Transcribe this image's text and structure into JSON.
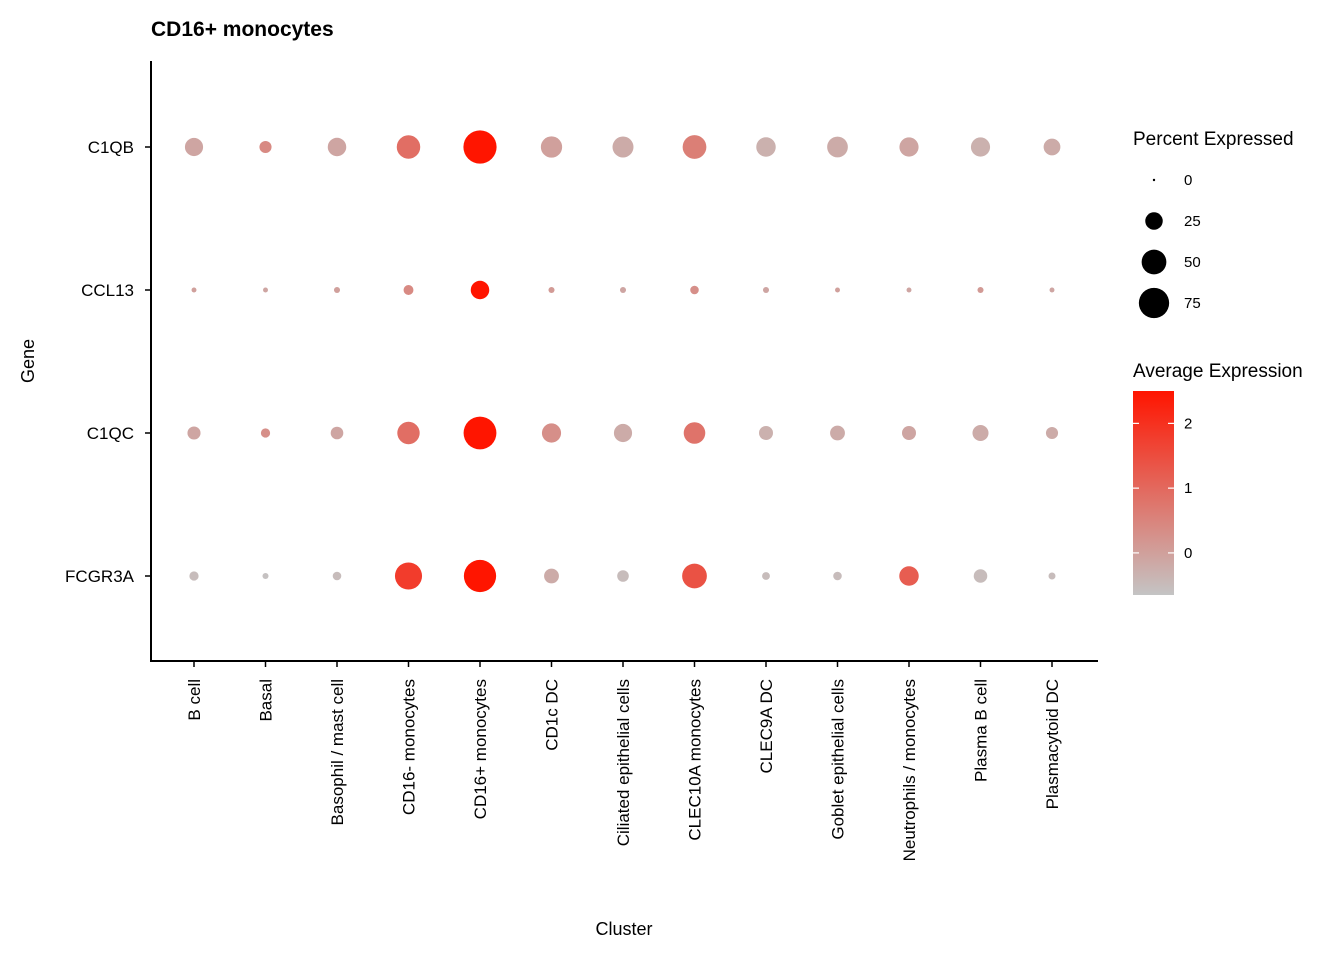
{
  "chart_data": {
    "type": "scatter",
    "subtype": "dot-plot",
    "title": "CD16+ monocytes",
    "xlabel": "Cluster",
    "ylabel": "Gene",
    "genes": [
      "C1QB",
      "CCL13",
      "C1QC",
      "FCGR3A"
    ],
    "clusters": [
      "B cell",
      "Basal",
      "Basophil / mast cell",
      "CD16- monocytes",
      "CD16+ monocytes",
      "CD1c DC",
      "Ciliated epithelial cells",
      "CLEC10A monocytes",
      "CLEC9A DC",
      "Goblet epithelial cells",
      "Neutrophils / monocytes",
      "Plasma B cell",
      "Plasmacytoid DC"
    ],
    "series": [
      {
        "gene": "C1QB",
        "pct_expressed": [
          27,
          12,
          28,
          45,
          90,
          37,
          36,
          46,
          31,
          35,
          30,
          30,
          23
        ],
        "avg_expression": [
          -0.1,
          0.4,
          -0.1,
          0.9,
          2.5,
          0.0,
          -0.2,
          0.6,
          -0.3,
          -0.2,
          -0.1,
          -0.3,
          -0.2
        ]
      },
      {
        "gene": "CCL13",
        "pct_expressed": [
          2,
          2,
          3,
          8,
          28,
          3,
          3,
          6,
          3,
          2,
          2,
          3,
          2
        ],
        "avg_expression": [
          0.0,
          -0.1,
          0.0,
          0.4,
          2.5,
          0.1,
          -0.1,
          0.3,
          -0.1,
          0.0,
          -0.1,
          0.1,
          -0.1
        ]
      },
      {
        "gene": "C1QC",
        "pct_expressed": [
          14,
          7,
          13,
          41,
          88,
          30,
          27,
          38,
          16,
          18,
          16,
          21,
          12
        ],
        "avg_expression": [
          -0.1,
          0.3,
          -0.1,
          0.9,
          2.5,
          0.3,
          -0.2,
          0.8,
          -0.3,
          -0.2,
          -0.1,
          -0.2,
          -0.2
        ]
      },
      {
        "gene": "FCGR3A",
        "pct_expressed": [
          7,
          3,
          6,
          60,
          85,
          18,
          11,
          50,
          5,
          6,
          31,
          15,
          4
        ],
        "avg_expression": [
          -0.5,
          -0.6,
          -0.5,
          1.8,
          2.5,
          -0.2,
          -0.5,
          1.4,
          -0.5,
          -0.5,
          1.2,
          -0.5,
          -0.5
        ]
      }
    ],
    "size_legend": {
      "title": "Percent Expressed",
      "values": [
        0,
        25,
        50,
        75
      ]
    },
    "color_legend": {
      "title": "Average Expression",
      "ticks": [
        0,
        1,
        2
      ],
      "range": [
        -0.65,
        2.5
      ],
      "low_color": "#c4c4c4",
      "high_color": "#ff1500"
    },
    "grid": false,
    "legend_position": "right"
  }
}
